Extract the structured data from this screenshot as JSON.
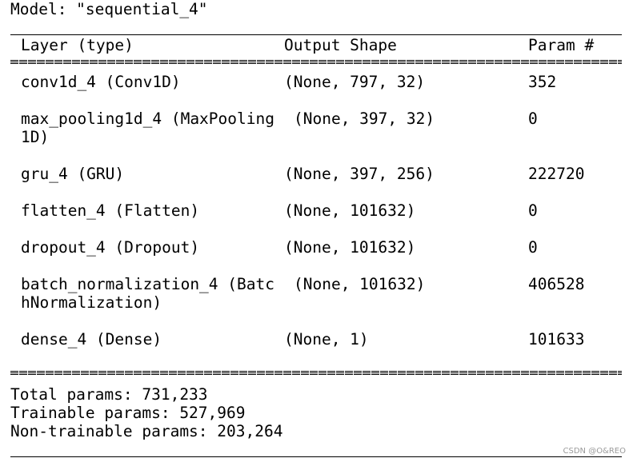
{
  "model": {
    "title": "Model: \"sequential_4\""
  },
  "header": {
    "layer": "Layer (type)",
    "shape": "Output Shape",
    "param": "Param #"
  },
  "rows": [
    {
      "layer": "conv1d_4 (Conv1D)",
      "shape": "(None, 797, 32)",
      "param": "352"
    },
    {
      "layer": "max_pooling1d_4 (MaxPooling",
      "layer_wrap": "1D)",
      "shape": "(None, 397, 32)",
      "param": "0"
    },
    {
      "layer": "gru_4 (GRU)",
      "shape": "(None, 397, 256)",
      "param": "222720"
    },
    {
      "layer": "flatten_4 (Flatten)",
      "shape": "(None, 101632)",
      "param": "0"
    },
    {
      "layer": "dropout_4 (Dropout)",
      "shape": "(None, 101632)",
      "param": "0"
    },
    {
      "layer": "batch_normalization_4 (Batc",
      "layer_wrap": "hNormalization)",
      "shape": "(None, 101632)",
      "param": "406528"
    },
    {
      "layer": "dense_4 (Dense)",
      "shape": "(None, 1)",
      "param": "101633"
    }
  ],
  "summary": {
    "total": "Total params: 731,233",
    "trainable": "Trainable params: 527,969",
    "non_trainable": "Non-trainable params: 203,264"
  },
  "watermark": "CSDN @O&REO"
}
